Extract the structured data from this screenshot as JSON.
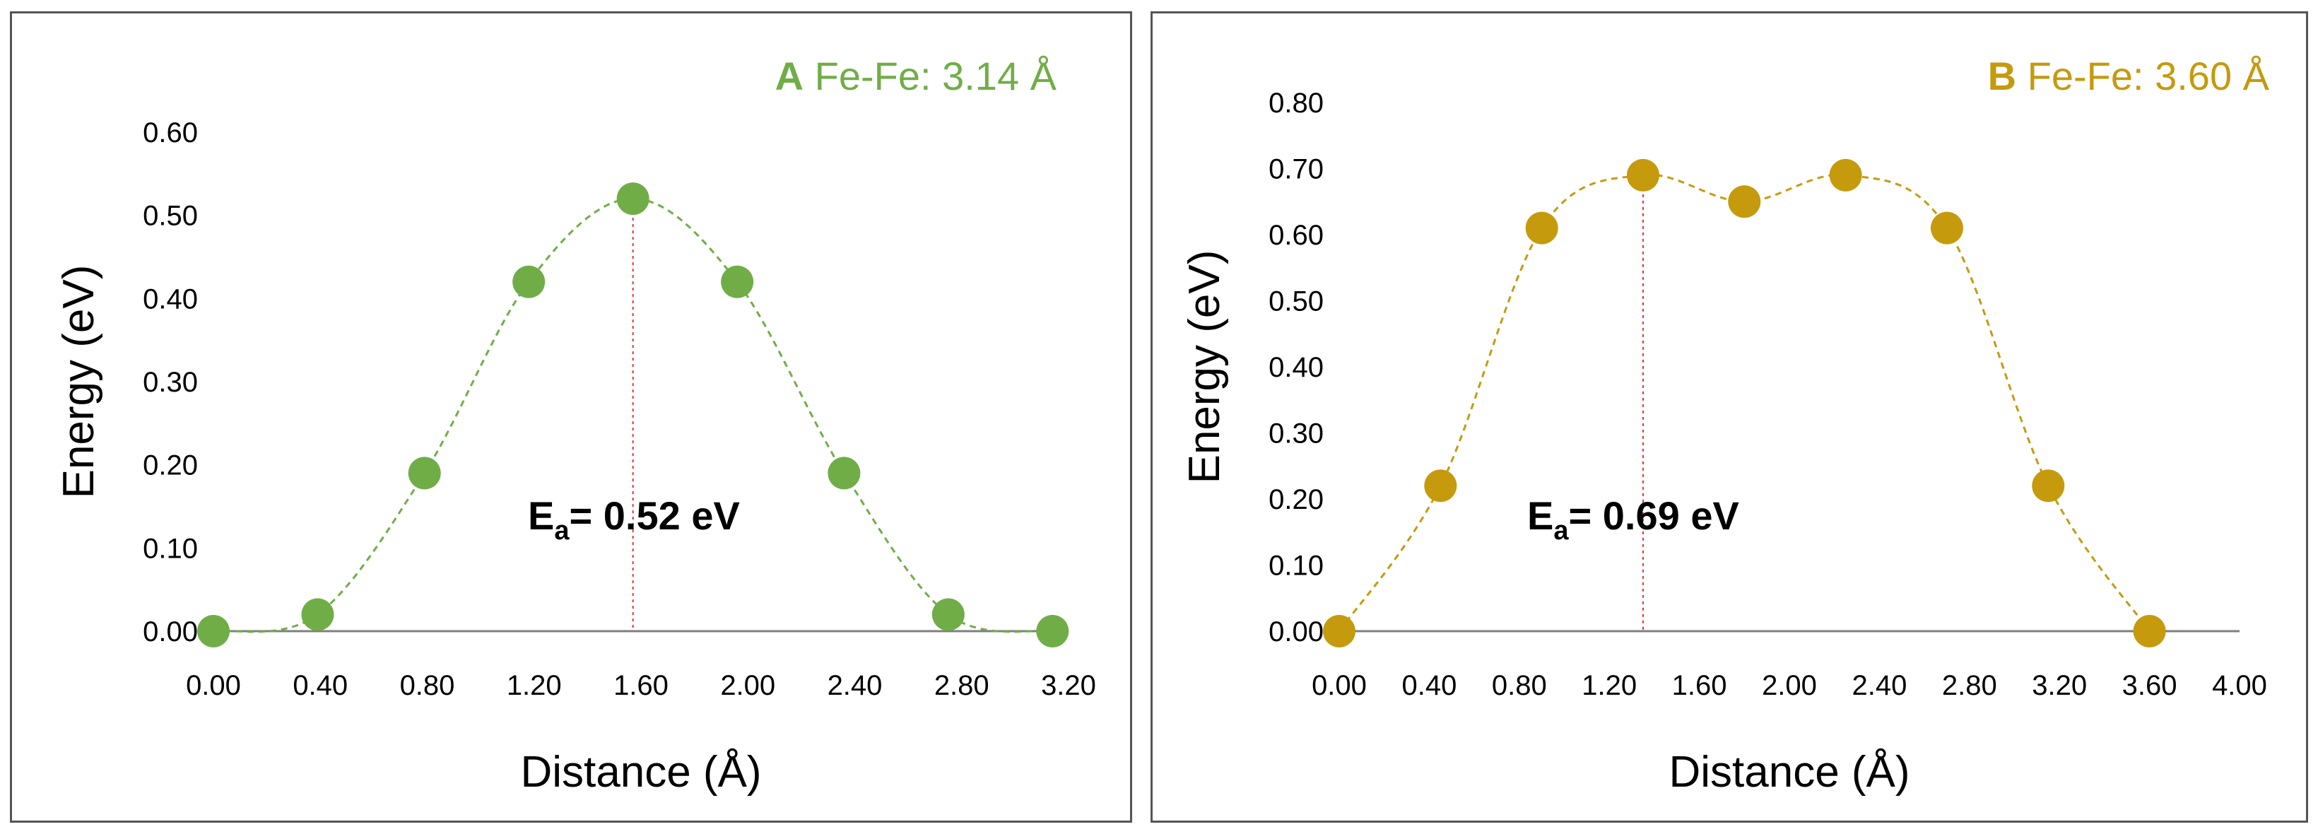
{
  "chart_data": [
    {
      "type": "line",
      "panel_letter": "A",
      "title_text": "Fe-Fe: 3.14 Å",
      "color": "#70ad47",
      "xlabel": "Distance (Å)",
      "ylabel": "Energy (eV)",
      "xlim": [
        0,
        3.2
      ],
      "ylim": [
        0,
        0.6
      ],
      "xticks": [
        "0.00",
        "0.40",
        "0.80",
        "1.20",
        "1.60",
        "2.00",
        "2.40",
        "2.80",
        "3.20"
      ],
      "yticks": [
        "0.00",
        "0.10",
        "0.20",
        "0.30",
        "0.40",
        "0.50",
        "0.60"
      ],
      "x": [
        0.0,
        0.39,
        0.79,
        1.18,
        1.57,
        1.96,
        2.36,
        2.75,
        3.14
      ],
      "y": [
        0.0,
        0.02,
        0.19,
        0.42,
        0.52,
        0.42,
        0.19,
        0.02,
        0.0
      ],
      "barrier_x": 1.57,
      "annotation": {
        "main": "E",
        "sub": "a",
        "rest": "= 0.52 eV"
      }
    },
    {
      "type": "line",
      "panel_letter": "B",
      "title_text": "Fe-Fe: 3.60 Å",
      "color": "#c59a0d",
      "xlabel": "Distance (Å)",
      "ylabel": "Energy (eV)",
      "xlim": [
        0,
        4.0
      ],
      "ylim": [
        0,
        0.8
      ],
      "xticks": [
        "0.00",
        "0.40",
        "0.80",
        "1.20",
        "1.60",
        "2.00",
        "2.40",
        "2.80",
        "3.20",
        "3.60",
        "4.00"
      ],
      "yticks": [
        "0.00",
        "0.10",
        "0.20",
        "0.30",
        "0.40",
        "0.50",
        "0.60",
        "0.70",
        "0.80"
      ],
      "x": [
        0.0,
        0.45,
        0.9,
        1.35,
        1.8,
        2.25,
        2.7,
        3.15,
        3.6
      ],
      "y": [
        0.0,
        0.22,
        0.61,
        0.69,
        0.65,
        0.69,
        0.61,
        0.22,
        0.0
      ],
      "barrier_x": 1.35,
      "annotation": {
        "main": "E",
        "sub": "a",
        "rest": "= 0.69 eV"
      }
    }
  ]
}
